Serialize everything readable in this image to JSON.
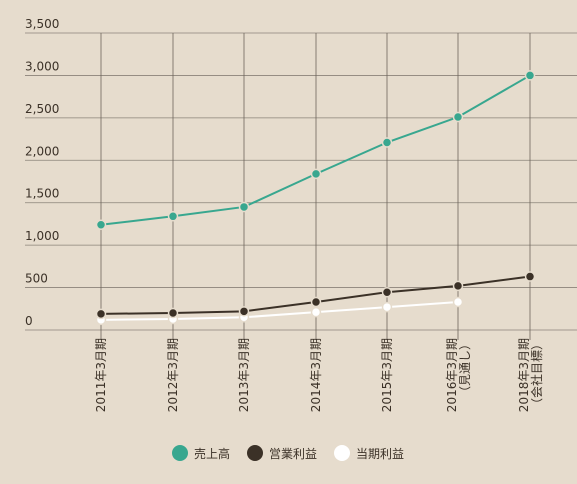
{
  "chart_data": {
    "type": "line",
    "categories": [
      "2011年3月期",
      "2012年3月期",
      "2013年3月期",
      "2014年3月期",
      "2015年3月期",
      "2016年3月期（見通し）",
      "2018年3月期（会社目標）"
    ],
    "series": [
      {
        "name": "売上高",
        "color": "#38a78f",
        "values": [
          1240,
          1340,
          1450,
          1840,
          2210,
          2510,
          3000
        ]
      },
      {
        "name": "営業利益",
        "color": "#3b3127",
        "values": [
          190,
          200,
          220,
          330,
          445,
          520,
          630
        ]
      },
      {
        "name": "当期利益",
        "color": "#ffffff",
        "values": [
          120,
          130,
          150,
          210,
          270,
          330,
          null
        ]
      }
    ],
    "ylim": [
      0,
      3500
    ],
    "yticks": [
      0,
      {
        "value": 500,
        "label": "500"
      },
      {
        "value": 1000,
        "label": "1,000"
      },
      {
        "value": 1500,
        "label": "1,500"
      },
      {
        "value": 2000,
        "label": "2,000"
      },
      {
        "value": 2500,
        "label": "2,500"
      },
      {
        "value": 3000,
        "label": "3,000"
      },
      {
        "value": 3500,
        "label": "3,500"
      }
    ],
    "grid": true
  }
}
